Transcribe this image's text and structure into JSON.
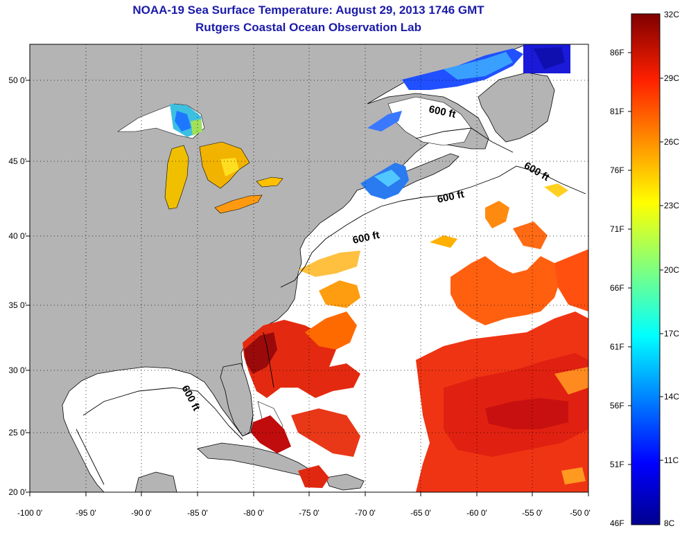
{
  "title_line1": "NOAA-19 Sea Surface Temperature:  August 29, 2013 1746 GMT",
  "title_line2": "Rutgers Coastal Ocean Observation Lab",
  "x_ticks": [
    "-100 0'",
    "-95 0'",
    "-90 0'",
    "-85 0'",
    "-80 0'",
    "-75 0'",
    "-70 0'",
    "-65 0'",
    "-60 0'",
    "-55 0'",
    "-50 0'"
  ],
  "y_ticks": [
    "50 0'",
    "45 0'",
    "40 0'",
    "35 0'",
    "30 0'",
    "25 0'",
    "20 0'"
  ],
  "contour_label": "600 ft",
  "colorbar": {
    "fahrenheit": [
      "86F",
      "81F",
      "76F",
      "71F",
      "66F",
      "61F",
      "56F",
      "51F",
      "46F"
    ],
    "celsius": [
      "32C",
      "29C",
      "26C",
      "23C",
      "20C",
      "17C",
      "14C",
      "11C",
      "8C"
    ],
    "colors": [
      "#7f0000",
      "#ff0000",
      "#ff7f00",
      "#ffff00",
      "#7fff7f",
      "#00ffff",
      "#007fff",
      "#0000ff",
      "#00008f"
    ]
  },
  "colors": {
    "land": "#b4b4b4",
    "ocean_no_data": "#ffffff",
    "title": "#1a1aa8"
  }
}
